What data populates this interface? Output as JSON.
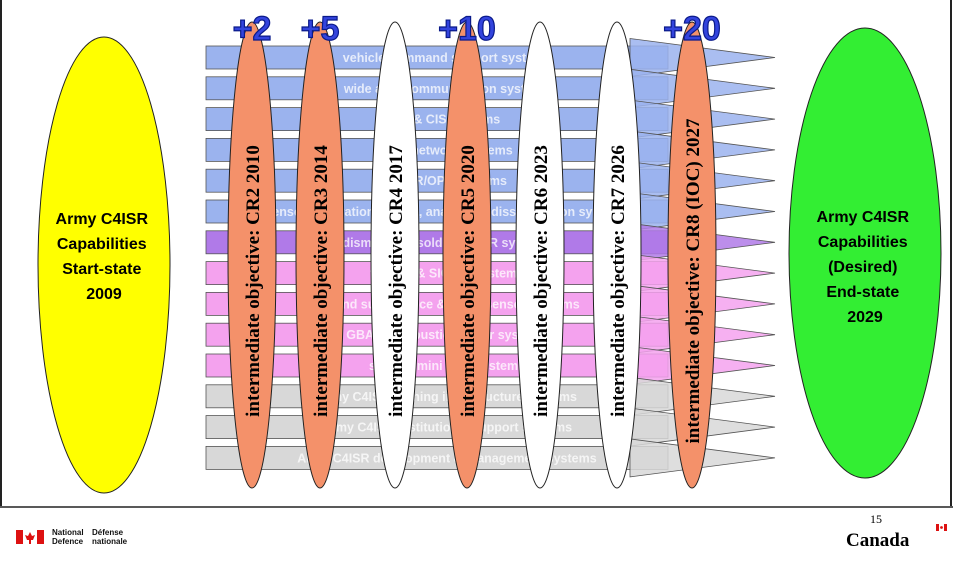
{
  "slide": {
    "start_state": [
      "Army C4ISR",
      "Capabilities",
      "Start-state",
      "2009"
    ],
    "end_state": [
      "Army C4ISR",
      "Capabilities",
      "(Desired)",
      "End-state",
      "2029"
    ],
    "page_number": "15",
    "footer": {
      "dept_en": [
        "National",
        "Defence"
      ],
      "dept_fr": [
        "Défense",
        "nationale"
      ],
      "wordmark": "Canada"
    },
    "colors": {
      "start": "#ffff00",
      "end": "#33ee33",
      "cr_orange": "#f4916a",
      "cr_white": "#ffffff",
      "band_blue": "#9bb3ee",
      "band_purple": "#b07ae8",
      "band_pink": "#f4a2ee",
      "band_grey": "#d8d8d8",
      "increment_text": "#3344dd"
    }
  },
  "bands": [
    {
      "label": "vehicle command support systems",
      "group": "blue"
    },
    {
      "label": "wide area communication systems",
      "group": "blue"
    },
    {
      "label": "C2 & CIS systems",
      "group": "blue"
    },
    {
      "label": "core network systems",
      "group": "blue"
    },
    {
      "label": "ISTAR/OPS systems",
      "group": "blue"
    },
    {
      "label": "sensor integration, fusion, analysis & dissemination systems",
      "group": "blue"
    },
    {
      "label": "dismounted soldier C4ISR systems",
      "group": "purple"
    },
    {
      "label": "tactical & SIGINT systems",
      "group": "pink"
    },
    {
      "label": "ground surveillance & recce sensor systems",
      "group": "pink"
    },
    {
      "label": "GBAD & acoustic sensor systems",
      "group": "pink"
    },
    {
      "label": "small & mini UAV systems",
      "group": "pink"
    },
    {
      "label": "Army C4ISR training infrastructure systems",
      "group": "grey"
    },
    {
      "label": "Army C4ISR institutional support systems",
      "group": "grey"
    },
    {
      "label": "Army C4ISR development & management systems",
      "group": "grey"
    }
  ],
  "objectives": [
    {
      "text": "intermediate objective: CR2 2010",
      "fill": "orange",
      "increment": "+2"
    },
    {
      "text": "intermediate objective: CR3 2014",
      "fill": "orange",
      "increment": "+5"
    },
    {
      "text": "intermediate objective: CR4 2017",
      "fill": "white",
      "increment": ""
    },
    {
      "text": "intermediate objective: CR5 2020",
      "fill": "orange",
      "increment": "+10"
    },
    {
      "text": "intermediate objective: CR6 2023",
      "fill": "white",
      "increment": ""
    },
    {
      "text": "intermediate objective: CR7 2026",
      "fill": "white",
      "increment": ""
    },
    {
      "text": "intermediate objective: CR8 (IOC) 2027",
      "fill": "orange",
      "increment": "+20"
    }
  ]
}
